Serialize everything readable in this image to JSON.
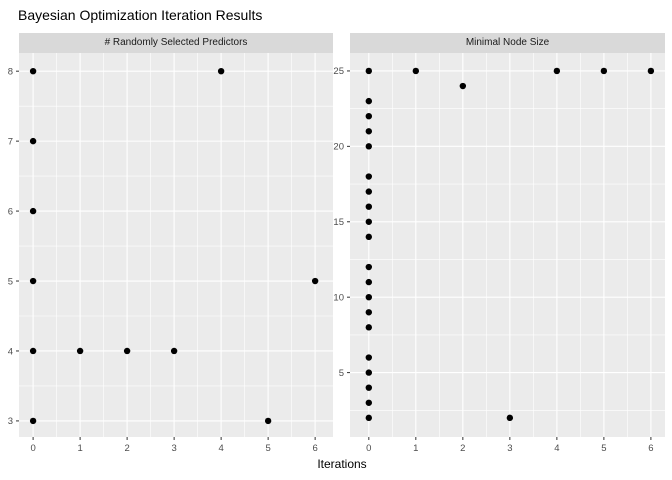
{
  "title": "Bayesian Optimization Iteration Results",
  "xlabel": "Iterations",
  "colors": {
    "panel_bg": "#EBEBEB",
    "grid": "#FFFFFF",
    "strip_bg": "#D9D9D9",
    "strip_text": "#1A1A1A",
    "axis_text": "#4D4D4D",
    "tick_mark": "#333333",
    "point": "#000000",
    "title_text": "#000000"
  },
  "chart_data": [
    {
      "type": "scatter",
      "title": "# Randomly Selected Predictors",
      "xlabel": "Iterations",
      "ylabel": "",
      "x_ticks": [
        0,
        1,
        2,
        3,
        4,
        5,
        6
      ],
      "y_ticks": [
        3,
        4,
        5,
        6,
        7,
        8
      ],
      "xlim": [
        -0.3,
        6.38
      ],
      "ylim": [
        2.77,
        8.26
      ],
      "grid": true,
      "legend": "none",
      "points": [
        [
          0,
          8
        ],
        [
          0,
          7
        ],
        [
          0,
          6
        ],
        [
          0,
          5
        ],
        [
          0,
          4
        ],
        [
          0,
          3
        ],
        [
          1,
          4
        ],
        [
          2,
          4
        ],
        [
          3,
          4
        ],
        [
          4,
          8
        ],
        [
          5,
          3
        ],
        [
          6,
          5
        ]
      ]
    },
    {
      "type": "scatter",
      "title": "Minimal Node Size",
      "xlabel": "Iterations",
      "ylabel": "",
      "x_ticks": [
        0,
        1,
        2,
        3,
        4,
        5,
        6
      ],
      "y_ticks": [
        5,
        10,
        15,
        20,
        25
      ],
      "xlim": [
        -0.4,
        6.3
      ],
      "ylim": [
        0.73,
        26.19
      ],
      "grid": true,
      "legend": "none",
      "points": [
        [
          0,
          25
        ],
        [
          0,
          23
        ],
        [
          0,
          22
        ],
        [
          0,
          21
        ],
        [
          0,
          20
        ],
        [
          0,
          18
        ],
        [
          0,
          17
        ],
        [
          0,
          16
        ],
        [
          0,
          15
        ],
        [
          0,
          14
        ],
        [
          0,
          12
        ],
        [
          0,
          11
        ],
        [
          0,
          10
        ],
        [
          0,
          9
        ],
        [
          0,
          8
        ],
        [
          0,
          6
        ],
        [
          0,
          5
        ],
        [
          0,
          4
        ],
        [
          0,
          3
        ],
        [
          0,
          2
        ],
        [
          1,
          25
        ],
        [
          2,
          24
        ],
        [
          3,
          2
        ],
        [
          4,
          25
        ],
        [
          5,
          25
        ],
        [
          6,
          25
        ]
      ]
    }
  ]
}
